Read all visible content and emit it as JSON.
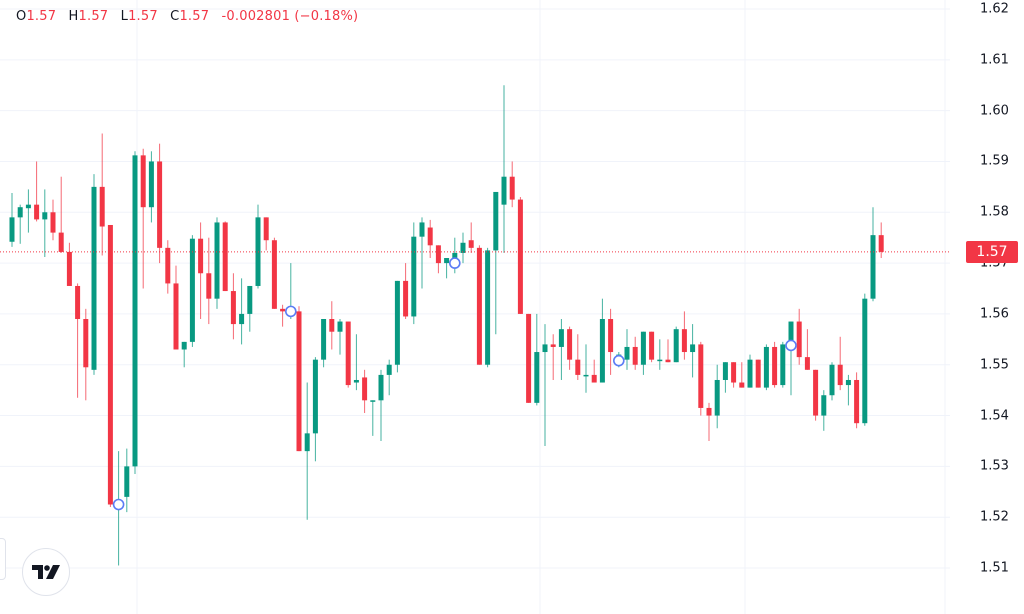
{
  "legend": {
    "open_label": "O",
    "open": "1.57",
    "high_label": "H",
    "high": "1.57",
    "low_label": "L",
    "low": "1.57",
    "close_label": "C",
    "close": "1.57",
    "change": "-0.002801 (−0.18%)"
  },
  "price_axis": {
    "ticks": [
      "1.62",
      "1.61",
      "1.60",
      "1.59",
      "1.58",
      "1.57",
      "1.56",
      "1.55",
      "1.54",
      "1.53",
      "1.52",
      "1.51"
    ],
    "last_price_label": "1.57",
    "last_price_value": 1.5722
  },
  "colors": {
    "up": "#089981",
    "down": "#f23645",
    "grid": "#f0f3fa",
    "marker": "#5b7cf5",
    "last_price": "#f23645"
  },
  "logo": {
    "name": "tradingview-logo"
  },
  "chart_data": {
    "type": "candlestick",
    "title": "",
    "xlabel": "",
    "ylabel": "",
    "ylim": [
      1.508,
      1.622
    ],
    "grid": true,
    "last_price": 1.5722,
    "y_ticks": [
      1.62,
      1.61,
      1.6,
      1.59,
      1.58,
      1.57,
      1.56,
      1.55,
      1.54,
      1.53,
      1.52,
      1.51
    ],
    "candles": [
      {
        "o": 1.5742,
        "h": 1.5838,
        "l": 1.5732,
        "c": 1.579
      },
      {
        "o": 1.579,
        "h": 1.5815,
        "l": 1.5738,
        "c": 1.581
      },
      {
        "o": 1.5808,
        "h": 1.5845,
        "l": 1.576,
        "c": 1.5815
      },
      {
        "o": 1.5815,
        "h": 1.59,
        "l": 1.5782,
        "c": 1.5786
      },
      {
        "o": 1.5786,
        "h": 1.5845,
        "l": 1.5712,
        "c": 1.58
      },
      {
        "o": 1.58,
        "h": 1.5825,
        "l": 1.5745,
        "c": 1.576
      },
      {
        "o": 1.576,
        "h": 1.587,
        "l": 1.572,
        "c": 1.5722
      },
      {
        "o": 1.5722,
        "h": 1.574,
        "l": 1.566,
        "c": 1.5655
      },
      {
        "o": 1.5655,
        "h": 1.566,
        "l": 1.5435,
        "c": 1.559
      },
      {
        "o": 1.559,
        "h": 1.561,
        "l": 1.543,
        "c": 1.5495
      },
      {
        "o": 1.549,
        "h": 1.5875,
        "l": 1.548,
        "c": 1.585
      },
      {
        "o": 1.585,
        "h": 1.5955,
        "l": 1.5715,
        "c": 1.5772
      },
      {
        "o": 1.5775,
        "h": 1.5775,
        "l": 1.522,
        "c": 1.5225
      },
      {
        "o": 1.5225,
        "h": 1.533,
        "l": 1.5105,
        "c": 1.5225
      },
      {
        "o": 1.524,
        "h": 1.5335,
        "l": 1.521,
        "c": 1.53
      },
      {
        "o": 1.53,
        "h": 1.592,
        "l": 1.5285,
        "c": 1.5912
      },
      {
        "o": 1.5912,
        "h": 1.5925,
        "l": 1.565,
        "c": 1.581
      },
      {
        "o": 1.581,
        "h": 1.592,
        "l": 1.578,
        "c": 1.59
      },
      {
        "o": 1.59,
        "h": 1.5935,
        "l": 1.57,
        "c": 1.573
      },
      {
        "o": 1.573,
        "h": 1.5745,
        "l": 1.564,
        "c": 1.566
      },
      {
        "o": 1.566,
        "h": 1.5695,
        "l": 1.5535,
        "c": 1.553
      },
      {
        "o": 1.553,
        "h": 1.5545,
        "l": 1.5495,
        "c": 1.5545
      },
      {
        "o": 1.5545,
        "h": 1.5755,
        "l": 1.5535,
        "c": 1.5748
      },
      {
        "o": 1.5748,
        "h": 1.578,
        "l": 1.559,
        "c": 1.568
      },
      {
        "o": 1.568,
        "h": 1.575,
        "l": 1.558,
        "c": 1.563
      },
      {
        "o": 1.563,
        "h": 1.579,
        "l": 1.561,
        "c": 1.578
      },
      {
        "o": 1.578,
        "h": 1.5782,
        "l": 1.565,
        "c": 1.5645
      },
      {
        "o": 1.5645,
        "h": 1.568,
        "l": 1.555,
        "c": 1.558
      },
      {
        "o": 1.558,
        "h": 1.567,
        "l": 1.554,
        "c": 1.56
      },
      {
        "o": 1.56,
        "h": 1.5652,
        "l": 1.5565,
        "c": 1.5655
      },
      {
        "o": 1.5655,
        "h": 1.5815,
        "l": 1.565,
        "c": 1.579
      },
      {
        "o": 1.579,
        "h": 1.579,
        "l": 1.5725,
        "c": 1.5745
      },
      {
        "o": 1.5745,
        "h": 1.575,
        "l": 1.561,
        "c": 1.561
      },
      {
        "o": 1.561,
        "h": 1.5618,
        "l": 1.5575,
        "c": 1.5605
      },
      {
        "o": 1.5605,
        "h": 1.57,
        "l": 1.559,
        "c": 1.5605
      },
      {
        "o": 1.5605,
        "h": 1.5615,
        "l": 1.533,
        "c": 1.533
      },
      {
        "o": 1.533,
        "h": 1.5465,
        "l": 1.5195,
        "c": 1.5365
      },
      {
        "o": 1.5365,
        "h": 1.5515,
        "l": 1.531,
        "c": 1.551
      },
      {
        "o": 1.551,
        "h": 1.559,
        "l": 1.5495,
        "c": 1.559
      },
      {
        "o": 1.559,
        "h": 1.5625,
        "l": 1.553,
        "c": 1.5565
      },
      {
        "o": 1.5565,
        "h": 1.559,
        "l": 1.552,
        "c": 1.5585
      },
      {
        "o": 1.5585,
        "h": 1.5585,
        "l": 1.5455,
        "c": 1.546
      },
      {
        "o": 1.5465,
        "h": 1.556,
        "l": 1.545,
        "c": 1.547
      },
      {
        "o": 1.5475,
        "h": 1.549,
        "l": 1.5405,
        "c": 1.543
      },
      {
        "o": 1.543,
        "h": 1.54,
        "l": 1.536,
        "c": 1.543
      },
      {
        "o": 1.543,
        "h": 1.549,
        "l": 1.535,
        "c": 1.548
      },
      {
        "o": 1.548,
        "h": 1.551,
        "l": 1.544,
        "c": 1.55
      },
      {
        "o": 1.55,
        "h": 1.5665,
        "l": 1.5485,
        "c": 1.5665
      },
      {
        "o": 1.5665,
        "h": 1.57,
        "l": 1.559,
        "c": 1.5595
      },
      {
        "o": 1.5595,
        "h": 1.578,
        "l": 1.558,
        "c": 1.5752
      },
      {
        "o": 1.5752,
        "h": 1.579,
        "l": 1.565,
        "c": 1.578
      },
      {
        "o": 1.577,
        "h": 1.5785,
        "l": 1.571,
        "c": 1.5735
      },
      {
        "o": 1.5735,
        "h": 1.5695,
        "l": 1.568,
        "c": 1.57
      },
      {
        "o": 1.57,
        "h": 1.571,
        "l": 1.567,
        "c": 1.571
      },
      {
        "o": 1.57,
        "h": 1.575,
        "l": 1.568,
        "c": 1.572
      },
      {
        "o": 1.572,
        "h": 1.576,
        "l": 1.57,
        "c": 1.574
      },
      {
        "o": 1.5745,
        "h": 1.578,
        "l": 1.572,
        "c": 1.573
      },
      {
        "o": 1.573,
        "h": 1.5735,
        "l": 1.55,
        "c": 1.55
      },
      {
        "o": 1.55,
        "h": 1.573,
        "l": 1.5495,
        "c": 1.5725
      },
      {
        "o": 1.5725,
        "h": 1.5805,
        "l": 1.556,
        "c": 1.584
      },
      {
        "o": 1.5815,
        "h": 1.605,
        "l": 1.572,
        "c": 1.587
      },
      {
        "o": 1.587,
        "h": 1.59,
        "l": 1.581,
        "c": 1.5825
      },
      {
        "o": 1.5825,
        "h": 1.583,
        "l": 1.568,
        "c": 1.56
      },
      {
        "o": 1.56,
        "h": 1.56,
        "l": 1.544,
        "c": 1.5425
      },
      {
        "o": 1.5425,
        "h": 1.56,
        "l": 1.542,
        "c": 1.5525
      },
      {
        "o": 1.5525,
        "h": 1.558,
        "l": 1.534,
        "c": 1.554
      },
      {
        "o": 1.554,
        "h": 1.556,
        "l": 1.547,
        "c": 1.5535
      },
      {
        "o": 1.5535,
        "h": 1.559,
        "l": 1.547,
        "c": 1.557
      },
      {
        "o": 1.557,
        "h": 1.5575,
        "l": 1.549,
        "c": 1.551
      },
      {
        "o": 1.551,
        "h": 1.556,
        "l": 1.547,
        "c": 1.548
      },
      {
        "o": 1.548,
        "h": 1.554,
        "l": 1.5445,
        "c": 1.548
      },
      {
        "o": 1.548,
        "h": 1.551,
        "l": 1.5475,
        "c": 1.5465
      },
      {
        "o": 1.5465,
        "h": 1.563,
        "l": 1.5465,
        "c": 1.559
      },
      {
        "o": 1.559,
        "h": 1.561,
        "l": 1.548,
        "c": 1.5525
      },
      {
        "o": 1.552,
        "h": 1.5525,
        "l": 1.5495,
        "c": 1.552
      },
      {
        "o": 1.551,
        "h": 1.557,
        "l": 1.549,
        "c": 1.5535
      },
      {
        "o": 1.5535,
        "h": 1.5555,
        "l": 1.549,
        "c": 1.55
      },
      {
        "o": 1.55,
        "h": 1.5565,
        "l": 1.548,
        "c": 1.5565
      },
      {
        "o": 1.5565,
        "h": 1.5565,
        "l": 1.5505,
        "c": 1.551
      },
      {
        "o": 1.551,
        "h": 1.555,
        "l": 1.549,
        "c": 1.551
      },
      {
        "o": 1.551,
        "h": 1.555,
        "l": 1.551,
        "c": 1.5505
      },
      {
        "o": 1.5505,
        "h": 1.5575,
        "l": 1.5505,
        "c": 1.557
      },
      {
        "o": 1.557,
        "h": 1.5605,
        "l": 1.551,
        "c": 1.5525
      },
      {
        "o": 1.5525,
        "h": 1.558,
        "l": 1.5475,
        "c": 1.554
      },
      {
        "o": 1.554,
        "h": 1.5545,
        "l": 1.54,
        "c": 1.5415
      },
      {
        "o": 1.5415,
        "h": 1.5425,
        "l": 1.535,
        "c": 1.54
      },
      {
        "o": 1.54,
        "h": 1.55,
        "l": 1.5375,
        "c": 1.547
      },
      {
        "o": 1.547,
        "h": 1.5505,
        "l": 1.5445,
        "c": 1.5505
      },
      {
        "o": 1.5505,
        "h": 1.5505,
        "l": 1.5455,
        "c": 1.5465
      },
      {
        "o": 1.5465,
        "h": 1.5505,
        "l": 1.546,
        "c": 1.5455
      },
      {
        "o": 1.5455,
        "h": 1.552,
        "l": 1.5455,
        "c": 1.551
      },
      {
        "o": 1.551,
        "h": 1.551,
        "l": 1.5455,
        "c": 1.5455
      },
      {
        "o": 1.5455,
        "h": 1.554,
        "l": 1.545,
        "c": 1.5535
      },
      {
        "o": 1.5535,
        "h": 1.5545,
        "l": 1.5455,
        "c": 1.546
      },
      {
        "o": 1.546,
        "h": 1.5545,
        "l": 1.5455,
        "c": 1.554
      },
      {
        "o": 1.554,
        "h": 1.558,
        "l": 1.544,
        "c": 1.5585
      },
      {
        "o": 1.5585,
        "h": 1.561,
        "l": 1.55,
        "c": 1.5515
      },
      {
        "o": 1.5515,
        "h": 1.557,
        "l": 1.549,
        "c": 1.549
      },
      {
        "o": 1.549,
        "h": 1.549,
        "l": 1.539,
        "c": 1.54
      },
      {
        "o": 1.54,
        "h": 1.545,
        "l": 1.537,
        "c": 1.544
      },
      {
        "o": 1.544,
        "h": 1.5505,
        "l": 1.543,
        "c": 1.55
      },
      {
        "o": 1.55,
        "h": 1.5555,
        "l": 1.545,
        "c": 1.546
      },
      {
        "o": 1.546,
        "h": 1.548,
        "l": 1.542,
        "c": 1.547
      },
      {
        "o": 1.547,
        "h": 1.5485,
        "l": 1.5375,
        "c": 1.5385
      },
      {
        "o": 1.5385,
        "h": 1.564,
        "l": 1.538,
        "c": 1.563
      },
      {
        "o": 1.563,
        "h": 1.581,
        "l": 1.5625,
        "c": 1.5755
      },
      {
        "o": 1.5755,
        "h": 1.578,
        "l": 1.571,
        "c": 1.5722
      }
    ],
    "markers": [
      {
        "index": 13,
        "price": 1.5225
      },
      {
        "index": 34,
        "price": 1.5605
      },
      {
        "index": 54,
        "price": 1.57
      },
      {
        "index": 74,
        "price": 1.5508
      },
      {
        "index": 95,
        "price": 1.5538
      }
    ]
  }
}
